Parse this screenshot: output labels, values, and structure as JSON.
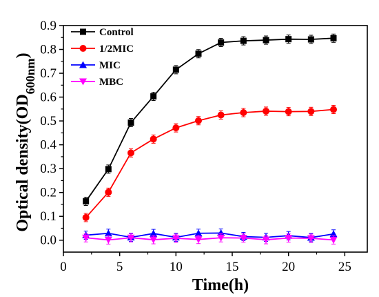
{
  "chart_data": {
    "type": "line",
    "title": "",
    "xlabel": "Time(h)",
    "ylabel_main": "Optical density(OD",
    "ylabel_sub": "600nm",
    "ylabel_close": ")",
    "xlim": [
      0,
      27
    ],
    "ylim": [
      -0.05,
      0.9
    ],
    "xticks": [
      0,
      5,
      10,
      15,
      20,
      25
    ],
    "xtick_labels": [
      "0",
      "5",
      "10",
      "15",
      "20",
      "25"
    ],
    "yticks": [
      0.0,
      0.1,
      0.2,
      0.3,
      0.4,
      0.5,
      0.6,
      0.7,
      0.8,
      0.9
    ],
    "ytick_labels": [
      "0.0",
      "0.1",
      "0.2",
      "0.3",
      "0.4",
      "0.5",
      "0.6",
      "0.7",
      "0.8",
      "0.9"
    ],
    "grid": false,
    "legend_position": "top-left",
    "x": [
      2,
      4,
      6,
      8,
      10,
      12,
      14,
      16,
      18,
      20,
      22,
      24
    ],
    "series": [
      {
        "name": "Control",
        "color": "#000000",
        "marker": "square",
        "values": [
          0.163,
          0.298,
          0.493,
          0.603,
          0.715,
          0.782,
          0.829,
          0.836,
          0.839,
          0.843,
          0.842,
          0.847
        ]
      },
      {
        "name": "1/2MIC",
        "color": "#ff0000",
        "marker": "circle",
        "values": [
          0.095,
          0.201,
          0.366,
          0.424,
          0.471,
          0.501,
          0.525,
          0.535,
          0.541,
          0.539,
          0.54,
          0.548
        ]
      },
      {
        "name": "MIC",
        "color": "#0000ff",
        "marker": "triangle-up",
        "values": [
          0.021,
          0.029,
          0.012,
          0.028,
          0.012,
          0.029,
          0.03,
          0.015,
          0.012,
          0.019,
          0.011,
          0.026
        ]
      },
      {
        "name": "MBC",
        "color": "#ff00ff",
        "marker": "triangle-down",
        "values": [
          0.01,
          0.001,
          0.01,
          0.002,
          0.008,
          0.003,
          0.01,
          0.009,
          0.002,
          0.009,
          0.008,
          0.001
        ]
      }
    ]
  }
}
